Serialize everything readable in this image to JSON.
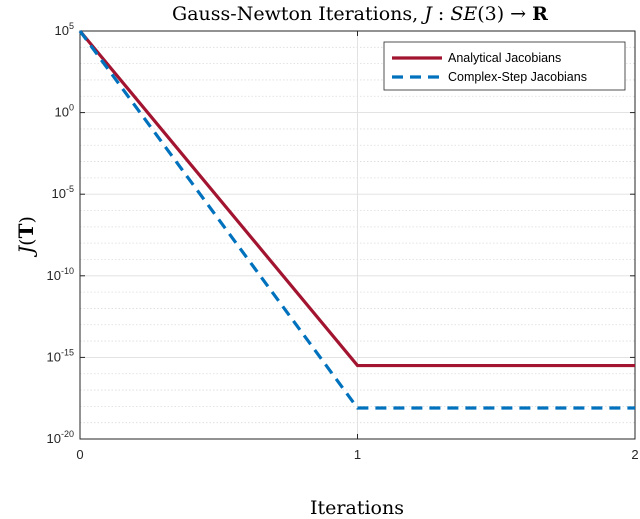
{
  "chart_data": {
    "type": "line",
    "title": {
      "prefix": "Gauss-Newton Iterations, ",
      "math_j": "J",
      "colon": " : ",
      "math_se": "SE",
      "paren": "(3) → ",
      "bold_r": "R"
    },
    "xlabel": "Iterations",
    "ylabel": {
      "fn": "J",
      "lparen": "(",
      "arg": "T",
      "rparen": ")"
    },
    "y_scale": "log",
    "xlim": [
      0,
      2
    ],
    "ylim_exponent": [
      -20,
      5
    ],
    "x_ticks": [
      {
        "value": 0,
        "label": "0"
      },
      {
        "value": 1,
        "label": "1"
      },
      {
        "value": 2,
        "label": "2"
      }
    ],
    "y_ticks": [
      {
        "exp": 5,
        "base": "10",
        "sup": "5"
      },
      {
        "exp": 0,
        "base": "10",
        "sup": "0"
      },
      {
        "exp": -5,
        "base": "10",
        "sup": "-5"
      },
      {
        "exp": -10,
        "base": "10",
        "sup": "-10"
      },
      {
        "exp": -15,
        "base": "10",
        "sup": "-15"
      },
      {
        "exp": -20,
        "base": "10",
        "sup": "-20"
      }
    ],
    "grid": true,
    "legend_position": "top-right",
    "series": [
      {
        "name": "Analytical Jacobians",
        "color": "#a2142f",
        "dash": "solid",
        "x": [
          0,
          1,
          2
        ],
        "y_exponent": [
          5,
          -15.5,
          -15.5
        ]
      },
      {
        "name": "Complex-Step Jacobians",
        "color": "#0072bd",
        "dash": "dashed",
        "x": [
          0,
          1,
          2
        ],
        "y_exponent": [
          5,
          -18.1,
          -18.1
        ]
      }
    ]
  }
}
